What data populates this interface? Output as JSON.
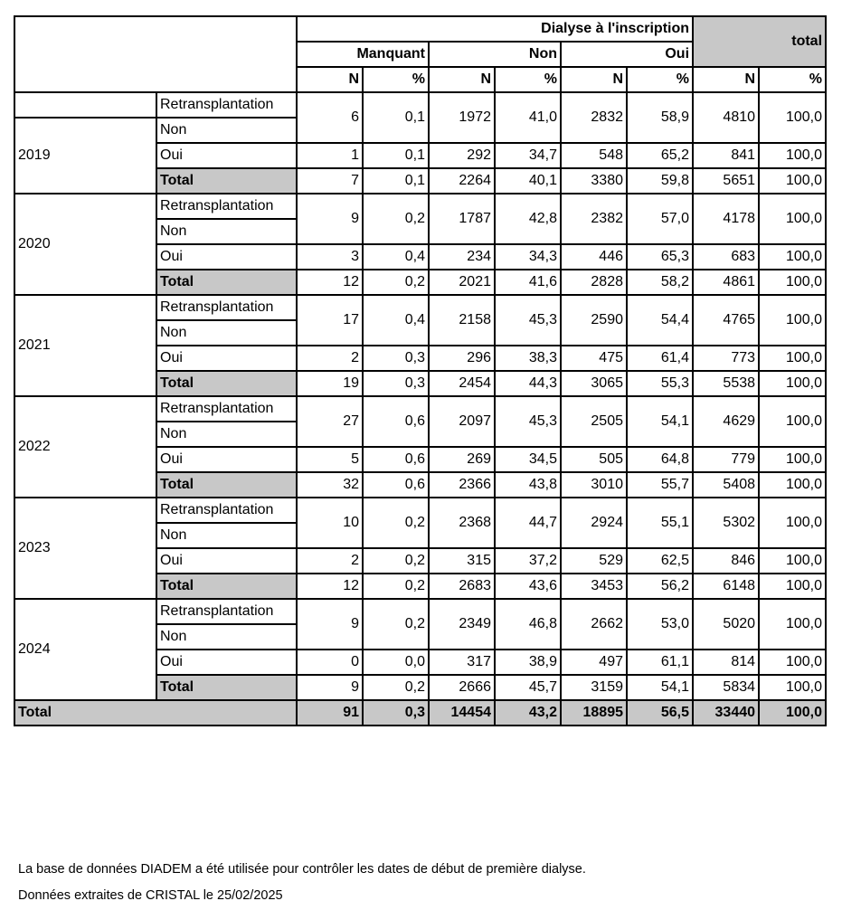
{
  "header": {
    "group": "Dialyse à l'inscription",
    "total": "total",
    "categories": [
      "Manquant",
      "Non",
      "Oui"
    ],
    "sub": [
      "N",
      "%",
      "N",
      "%",
      "N",
      "%",
      "N",
      "%"
    ]
  },
  "row_labels": {
    "retrans": "Retransplantation",
    "non": "Non",
    "oui": "Oui",
    "total": "Total"
  },
  "years": [
    {
      "year": "2019",
      "retrans_non": [
        "6",
        "0,1",
        "1972",
        "41,0",
        "2832",
        "58,9",
        "4810",
        "100,0"
      ],
      "oui": [
        "1",
        "0,1",
        "292",
        "34,7",
        "548",
        "65,2",
        "841",
        "100,0"
      ],
      "total": [
        "7",
        "0,1",
        "2264",
        "40,1",
        "3380",
        "59,8",
        "5651",
        "100,0"
      ]
    },
    {
      "year": "2020",
      "retrans_non": [
        "9",
        "0,2",
        "1787",
        "42,8",
        "2382",
        "57,0",
        "4178",
        "100,0"
      ],
      "oui": [
        "3",
        "0,4",
        "234",
        "34,3",
        "446",
        "65,3",
        "683",
        "100,0"
      ],
      "total": [
        "12",
        "0,2",
        "2021",
        "41,6",
        "2828",
        "58,2",
        "4861",
        "100,0"
      ]
    },
    {
      "year": "2021",
      "retrans_non": [
        "17",
        "0,4",
        "2158",
        "45,3",
        "2590",
        "54,4",
        "4765",
        "100,0"
      ],
      "oui": [
        "2",
        "0,3",
        "296",
        "38,3",
        "475",
        "61,4",
        "773",
        "100,0"
      ],
      "total": [
        "19",
        "0,3",
        "2454",
        "44,3",
        "3065",
        "55,3",
        "5538",
        "100,0"
      ]
    },
    {
      "year": "2022",
      "retrans_non": [
        "27",
        "0,6",
        "2097",
        "45,3",
        "2505",
        "54,1",
        "4629",
        "100,0"
      ],
      "oui": [
        "5",
        "0,6",
        "269",
        "34,5",
        "505",
        "64,8",
        "779",
        "100,0"
      ],
      "total": [
        "32",
        "0,6",
        "2366",
        "43,8",
        "3010",
        "55,7",
        "5408",
        "100,0"
      ]
    },
    {
      "year": "2023",
      "retrans_non": [
        "10",
        "0,2",
        "2368",
        "44,7",
        "2924",
        "55,1",
        "5302",
        "100,0"
      ],
      "oui": [
        "2",
        "0,2",
        "315",
        "37,2",
        "529",
        "62,5",
        "846",
        "100,0"
      ],
      "total": [
        "12",
        "0,2",
        "2683",
        "43,6",
        "3453",
        "56,2",
        "6148",
        "100,0"
      ]
    },
    {
      "year": "2024",
      "retrans_non": [
        "9",
        "0,2",
        "2349",
        "46,8",
        "2662",
        "53,0",
        "5020",
        "100,0"
      ],
      "oui": [
        "0",
        "0,0",
        "317",
        "38,9",
        "497",
        "61,1",
        "814",
        "100,0"
      ],
      "total": [
        "9",
        "0,2",
        "2666",
        "45,7",
        "3159",
        "54,1",
        "5834",
        "100,0"
      ]
    }
  ],
  "grand_total": {
    "label": "Total",
    "values": [
      "91",
      "0,3",
      "14454",
      "43,2",
      "18895",
      "56,5",
      "33440",
      "100,0"
    ]
  },
  "footnotes": [
    "La base de données DIADEM a été utilisée pour contrôler les dates de début de première dialyse.",
    "Données extraites de CRISTAL le 25/02/2025"
  ],
  "colors": {
    "grey_fill": "#c8c8c8",
    "border": "#000000"
  }
}
